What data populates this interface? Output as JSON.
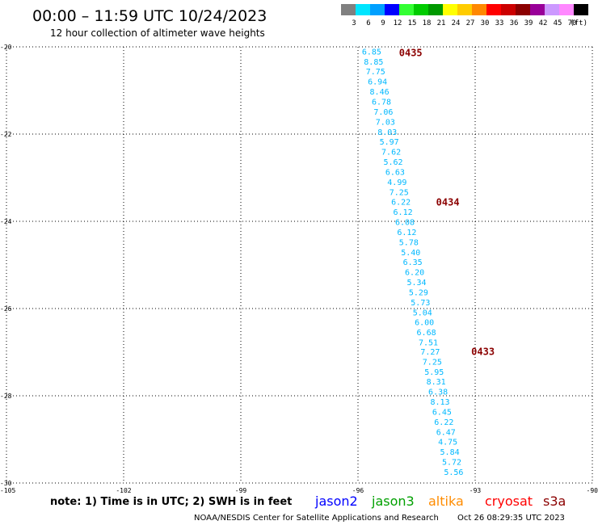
{
  "header": {
    "title": "00:00 – 11:59 UTC 10/24/2023",
    "subtitle": "12 hour collection of altimeter wave heights"
  },
  "legend": {
    "unit": "(ft)",
    "bins": [
      {
        "label": "3",
        "color": "#808080"
      },
      {
        "label": "6",
        "color": "#00e5ff"
      },
      {
        "label": "9",
        "color": "#00a0ff"
      },
      {
        "label": "12",
        "color": "#0000ff"
      },
      {
        "label": "15",
        "color": "#33ff33"
      },
      {
        "label": "18",
        "color": "#00cc00"
      },
      {
        "label": "21",
        "color": "#009900"
      },
      {
        "label": "24",
        "color": "#ffff00"
      },
      {
        "label": "27",
        "color": "#ffcc00"
      },
      {
        "label": "30",
        "color": "#ff8800"
      },
      {
        "label": "33",
        "color": "#ff0000"
      },
      {
        "label": "36",
        "color": "#cc0000"
      },
      {
        "label": "39",
        "color": "#8b0000"
      },
      {
        "label": "42",
        "color": "#990099"
      },
      {
        "label": "45",
        "color": "#cc99ff"
      },
      {
        "label": "70",
        "color": "#ff88ff"
      },
      {
        "label": "",
        "color": "#000000"
      }
    ]
  },
  "footer": {
    "note": "note: 1) Time is in UTC; 2) SWH is in feet",
    "satellites": [
      {
        "name": "jason2",
        "color": "#0000ff"
      },
      {
        "name": "jason3",
        "color": "#00a000"
      },
      {
        "name": "altika",
        "color": "#ff8c00"
      },
      {
        "name": "cryosat",
        "color": "#ff0000"
      },
      {
        "name": "s3a",
        "color": "#8b0000"
      }
    ],
    "credit": "NOAA/NESDIS Center for Satellite Applications and Research",
    "timestamp": "Oct 26 08:29:35 UTC 2023"
  },
  "chart_data": {
    "type": "scatter",
    "xlim": [
      -105,
      -90
    ],
    "ylim": [
      -30,
      -20
    ],
    "xticks": [
      -105,
      -102,
      -99,
      -96,
      -93,
      -90
    ],
    "yticks": [
      -20,
      -22,
      -24,
      -26,
      -28,
      -30
    ],
    "grid": true,
    "series": [
      {
        "name": "altika",
        "color": "#00b8ff",
        "points": [
          {
            "x": -95.65,
            "y": -20.1,
            "label": "6.85"
          },
          {
            "x": -95.6,
            "y": -20.33,
            "label": "8.85"
          },
          {
            "x": -95.55,
            "y": -20.56,
            "label": "7.75"
          },
          {
            "x": -95.5,
            "y": -20.79,
            "label": "6.94"
          },
          {
            "x": -95.45,
            "y": -21.02,
            "label": "8.46"
          },
          {
            "x": -95.4,
            "y": -21.25,
            "label": "6.78"
          },
          {
            "x": -95.35,
            "y": -21.48,
            "label": "7.06"
          },
          {
            "x": -95.3,
            "y": -21.71,
            "label": "7.03"
          },
          {
            "x": -95.25,
            "y": -21.94,
            "label": "8.03"
          },
          {
            "x": -95.2,
            "y": -22.17,
            "label": "5.97"
          },
          {
            "x": -95.15,
            "y": -22.4,
            "label": "7.62"
          },
          {
            "x": -95.1,
            "y": -22.63,
            "label": "5.62"
          },
          {
            "x": -95.05,
            "y": -22.86,
            "label": "6.63"
          },
          {
            "x": -95.0,
            "y": -23.09,
            "label": "4.99"
          },
          {
            "x": -94.95,
            "y": -23.32,
            "label": "7.25"
          },
          {
            "x": -94.9,
            "y": -23.55,
            "label": "6.22"
          },
          {
            "x": -94.85,
            "y": -23.78,
            "label": "6.12"
          },
          {
            "x": -94.8,
            "y": -24.01,
            "label": "6.08"
          },
          {
            "x": -94.75,
            "y": -24.24,
            "label": "6.12"
          },
          {
            "x": -94.7,
            "y": -24.47,
            "label": "5.78"
          },
          {
            "x": -94.65,
            "y": -24.7,
            "label": "5.40"
          },
          {
            "x": -94.6,
            "y": -24.93,
            "label": "6.35"
          },
          {
            "x": -94.55,
            "y": -25.16,
            "label": "6.20"
          },
          {
            "x": -94.5,
            "y": -25.39,
            "label": "5.34"
          },
          {
            "x": -94.45,
            "y": -25.62,
            "label": "5.29"
          },
          {
            "x": -94.4,
            "y": -25.85,
            "label": "5.73"
          },
          {
            "x": -94.35,
            "y": -26.08,
            "label": "5.04"
          },
          {
            "x": -94.3,
            "y": -26.31,
            "label": "6.00"
          },
          {
            "x": -94.25,
            "y": -26.54,
            "label": "6.68"
          },
          {
            "x": -94.2,
            "y": -26.77,
            "label": "7.51"
          },
          {
            "x": -94.15,
            "y": -26.98,
            "label": "7.27"
          },
          {
            "x": -94.1,
            "y": -27.21,
            "label": "7.25"
          },
          {
            "x": -94.05,
            "y": -27.44,
            "label": "5.95"
          },
          {
            "x": -94.0,
            "y": -27.67,
            "label": "8.31"
          },
          {
            "x": -93.95,
            "y": -27.9,
            "label": "6.38"
          },
          {
            "x": -93.9,
            "y": -28.13,
            "label": "8.13"
          },
          {
            "x": -93.85,
            "y": -28.36,
            "label": "6.45"
          },
          {
            "x": -93.8,
            "y": -28.59,
            "label": "6.22"
          },
          {
            "x": -93.75,
            "y": -28.82,
            "label": "6.47"
          },
          {
            "x": -93.7,
            "y": -29.05,
            "label": "4.75"
          },
          {
            "x": -93.65,
            "y": -29.28,
            "label": "5.84"
          },
          {
            "x": -93.6,
            "y": -29.51,
            "label": "5.72"
          },
          {
            "x": -93.55,
            "y": -29.74,
            "label": "5.56"
          }
        ]
      }
    ],
    "time_labels": [
      {
        "x": -94.95,
        "y": -20.12,
        "label": "0435",
        "color": "#8b0000"
      },
      {
        "x": -94.0,
        "y": -23.55,
        "label": "0434",
        "color": "#8b0000"
      },
      {
        "x": -93.1,
        "y": -26.97,
        "label": "0433",
        "color": "#8b0000"
      }
    ]
  }
}
